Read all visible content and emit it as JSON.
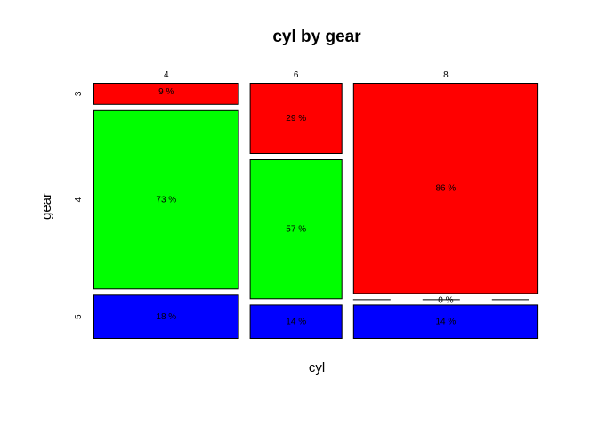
{
  "chart_data": {
    "type": "mosaic",
    "title": "cyl by gear",
    "xlabel": "cyl",
    "ylabel": "gear",
    "x_categories": [
      "4",
      "6",
      "8"
    ],
    "y_categories": [
      "3",
      "4",
      "5"
    ],
    "column_counts": [
      11,
      7,
      14
    ],
    "series": [
      {
        "name": "3",
        "color": "#ff0000",
        "values": [
          9,
          29,
          86
        ],
        "labels": [
          "9 %",
          "29 %",
          "86 %"
        ]
      },
      {
        "name": "4",
        "color": "#00ff00",
        "values": [
          73,
          57,
          0
        ],
        "labels": [
          "73 %",
          "57 %",
          "0 %"
        ]
      },
      {
        "name": "5",
        "color": "#0000ff",
        "values": [
          18,
          14,
          14
        ],
        "labels": [
          "18 %",
          "14 %",
          "14 %"
        ]
      }
    ]
  }
}
